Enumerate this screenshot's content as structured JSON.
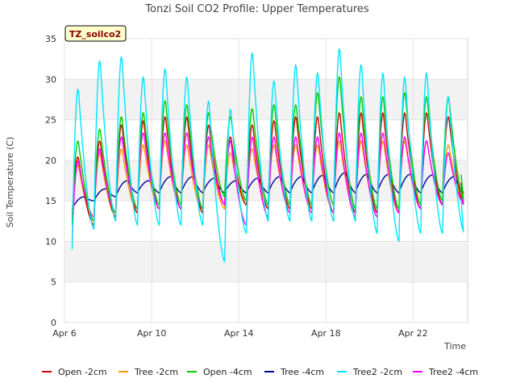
{
  "chart_data": {
    "type": "line",
    "title": "Tonzi Soil CO2 Profile: Upper Temperatures",
    "xlabel": "Time",
    "ylabel": "Soil Temperature (C)",
    "site_tag": "TZ_soilco2",
    "ylim": [
      0,
      35
    ],
    "xlim_days": [
      6,
      24.5
    ],
    "y_ticks": [
      0,
      5,
      10,
      15,
      20,
      25,
      30,
      35
    ],
    "x_ticks": [
      {
        "day": 6,
        "label": "Apr 6"
      },
      {
        "day": 10,
        "label": "Apr 10"
      },
      {
        "day": 14,
        "label": "Apr 14"
      },
      {
        "day": 18,
        "label": "Apr 18"
      },
      {
        "day": 22,
        "label": "Apr 22"
      }
    ],
    "grid": true,
    "alternating_bands": true,
    "legend_position": "bottom",
    "series": [
      {
        "name": "Open -2cm",
        "color": "#cc0000",
        "peaks": [
          20.5,
          22.5,
          24.5,
          25,
          25.5,
          25.5,
          24.5,
          23,
          24.5,
          25,
          25.5,
          25.5,
          26,
          26,
          26,
          26,
          26,
          25.5
        ],
        "troughs": [
          13,
          12,
          13,
          13.5,
          14,
          14,
          13.5,
          14.5,
          14.5,
          14,
          14,
          14,
          13.5,
          13.5,
          13.5,
          13.5,
          14,
          14.5
        ]
      },
      {
        "name": "Tree -2cm",
        "color": "#ff9900",
        "peaks": [
          19.5,
          21,
          21.5,
          22,
          22.5,
          22,
          22,
          21,
          21.5,
          22,
          22,
          22,
          22.5,
          22.5,
          22.5,
          22.5,
          22.5,
          22
        ],
        "troughs": [
          12.5,
          12.5,
          13,
          13.5,
          14,
          14,
          13.5,
          14,
          14.5,
          14,
          14,
          14,
          13.5,
          13.5,
          13.5,
          13.5,
          14,
          14.5
        ]
      },
      {
        "name": "Open -4cm",
        "color": "#00cc00",
        "peaks": [
          22.5,
          24,
          25.5,
          26,
          27.5,
          27,
          26,
          25.5,
          26.5,
          27,
          27,
          28.5,
          30.5,
          28,
          28,
          28.5,
          28,
          28
        ],
        "troughs": [
          12,
          12.5,
          13.5,
          14,
          14.5,
          14.5,
          14,
          15.5,
          15,
          14.5,
          14.5,
          14.5,
          14.5,
          14,
          14,
          14,
          14.5,
          15
        ]
      },
      {
        "name": "Tree -4cm",
        "color": "#000099",
        "peaks": [
          15.5,
          16.5,
          17.5,
          17.5,
          18,
          18,
          17.8,
          17.5,
          17.8,
          18,
          18,
          18.2,
          18.5,
          18.3,
          18.3,
          18.3,
          18.2,
          18
        ],
        "troughs": [
          14,
          15,
          15.5,
          16,
          16,
          16,
          16,
          16,
          16,
          16,
          16,
          16,
          16,
          16,
          16,
          16,
          16,
          16
        ]
      },
      {
        "name": "Tree2 -2cm",
        "color": "#00e5ff",
        "peaks": [
          29,
          32.5,
          33,
          30.5,
          31.5,
          30.5,
          27.5,
          26.5,
          33.5,
          30,
          32,
          31,
          34,
          32,
          31,
          30.5,
          31,
          28
        ],
        "troughs": [
          9,
          11.5,
          12.5,
          12,
          12,
          12,
          12,
          7.5,
          11,
          12.5,
          12.5,
          12.5,
          12.5,
          12.5,
          11,
          10,
          11,
          11
        ]
      },
      {
        "name": "Tree2 -4cm",
        "color": "#ff00ff",
        "peaks": [
          20,
          21.5,
          23,
          23.5,
          23.5,
          23.5,
          23,
          22.5,
          23,
          23,
          23,
          23,
          23.5,
          23.5,
          23.5,
          23,
          22.5,
          21
        ],
        "troughs": [
          10,
          13,
          13.5,
          14,
          14,
          14,
          14,
          14.5,
          12,
          13,
          13.5,
          13.5,
          13.5,
          13,
          13,
          13.5,
          14,
          14.5
        ]
      }
    ]
  }
}
